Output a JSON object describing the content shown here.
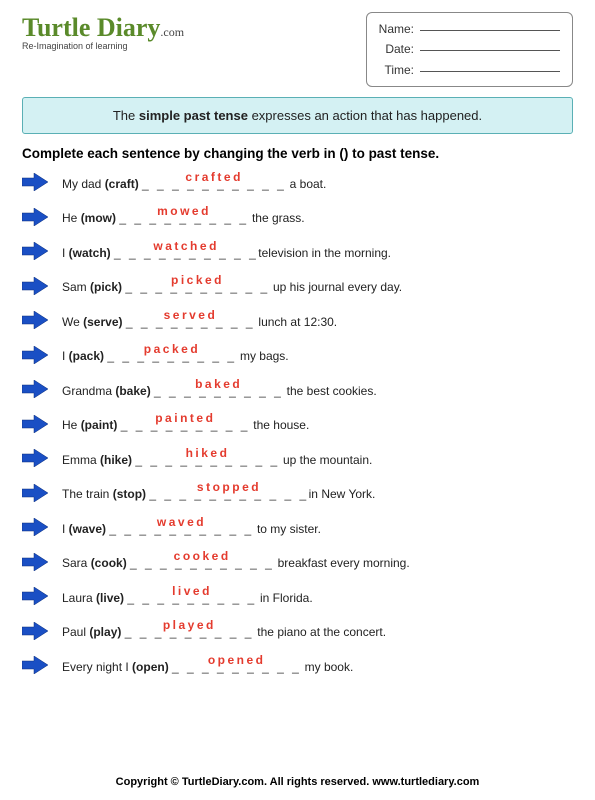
{
  "logo": {
    "main": "Turtle Diary",
    "dotcom": ".com",
    "sub": "Re-Imagination of learning"
  },
  "meta": {
    "nameLabel": "Name:",
    "dateLabel": "Date:",
    "timeLabel": "Time:"
  },
  "ruleBox": {
    "t1": "The ",
    "bold": "simple past tense",
    "t2": " expresses an action that has happened."
  },
  "instructions": "Complete each sentence by changing the verb in () to past tense.",
  "arrow": {
    "fill": "#1a4fc4",
    "stroke": "#0d2f7a"
  },
  "answerColor": "#e43b2e",
  "items": [
    {
      "pre": "My dad ",
      "verb": "(craft)",
      "dashes": "_ _ _ _ _ _ _ _ _ _",
      "answer": "crafted",
      "post": " a boat."
    },
    {
      "pre": "He ",
      "verb": "(mow)",
      "dashes": "_ _ _ _ _ _ _ _ _",
      "answer": "mowed",
      "post": " the grass."
    },
    {
      "pre": "I ",
      "verb": "(watch)",
      "dashes": "_ _ _ _ _ _ _ _ _ _",
      "answer": "watched",
      "post": "television in the morning."
    },
    {
      "pre": "Sam ",
      "verb": "(pick)",
      "dashes": "_ _ _ _ _ _ _ _ _ _",
      "answer": "picked",
      "post": " up his journal every day."
    },
    {
      "pre": "We ",
      "verb": "(serve)",
      "dashes": "_ _ _ _ _ _ _ _ _",
      "answer": "served",
      "post": " lunch at 12:30."
    },
    {
      "pre": "I ",
      "verb": "(pack)",
      "dashes": "_ _ _ _ _ _ _ _ _",
      "answer": "packed",
      "post": " my bags."
    },
    {
      "pre": "Grandma ",
      "verb": "(bake)",
      "dashes": "_ _ _ _ _ _ _ _ _",
      "answer": "baked",
      "post": " the best cookies."
    },
    {
      "pre": "He ",
      "verb": "(paint)",
      "dashes": "_ _ _ _ _ _ _ _ _",
      "answer": "painted",
      "post": " the house."
    },
    {
      "pre": "Emma ",
      "verb": "(hike)",
      "dashes": "_ _ _ _ _ _ _ _ _ _",
      "answer": "hiked",
      "post": " up the mountain."
    },
    {
      "pre": "The train ",
      "verb": "(stop)",
      "dashes": "_ _ _ _ _ _ _ _ _ _ _",
      "answer": "stopped",
      "post": "in New York."
    },
    {
      "pre": "I ",
      "verb": "(wave)",
      "dashes": "_ _ _ _ _ _ _ _ _ _",
      "answer": "waved",
      "post": "  to my sister."
    },
    {
      "pre": "Sara ",
      "verb": "(cook)",
      "dashes": "_ _ _ _ _ _ _ _ _ _",
      "answer": "cooked",
      "post": " breakfast every morning."
    },
    {
      "pre": "Laura ",
      "verb": "(live)",
      "dashes": "_ _ _ _ _ _ _ _ _",
      "answer": "lived",
      "post": " in Florida."
    },
    {
      "pre": "Paul ",
      "verb": "(play)",
      "dashes": "_ _ _ _ _ _ _ _ _",
      "answer": "played",
      "post": " the piano at the concert."
    },
    {
      "pre": "Every night I ",
      "verb": "(open)",
      "dashes": "_ _ _ _ _ _ _ _ _",
      "answer": "opened",
      "post": " my book."
    }
  ],
  "footer": "Copyright © TurtleDiary.com. All rights reserved.   www.turtlediary.com"
}
